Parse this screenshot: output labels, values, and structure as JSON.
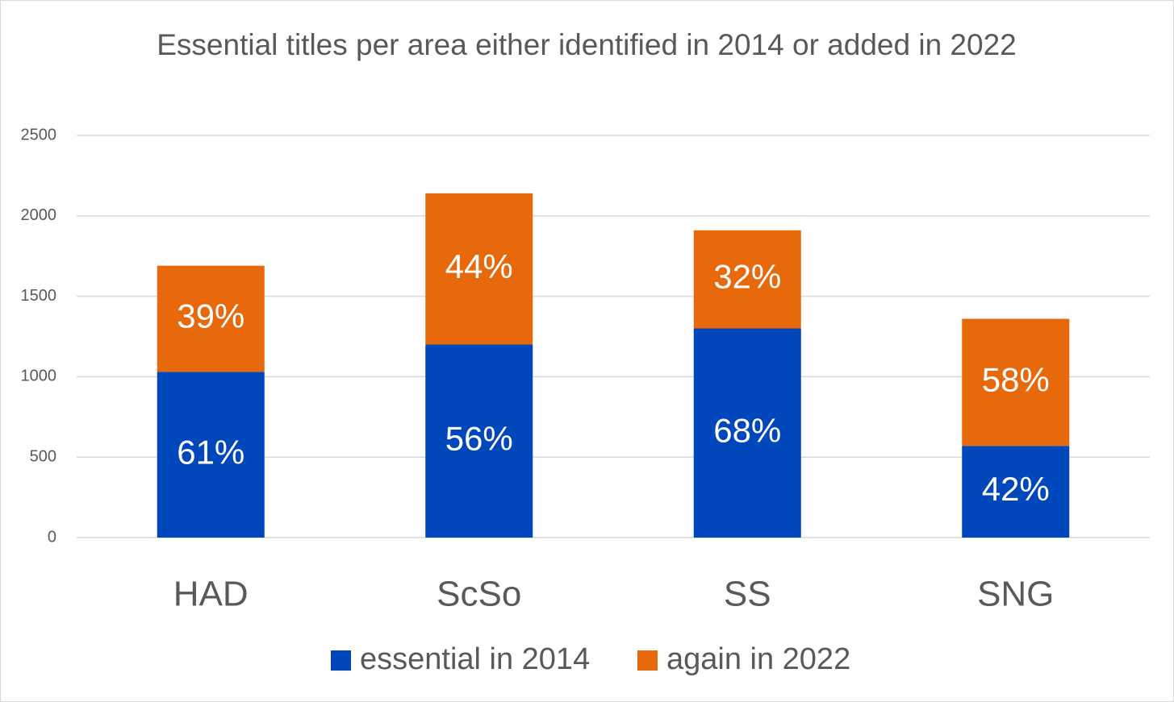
{
  "chart_data": {
    "type": "stacked_bar",
    "title": "Essential titles per area either identified in 2014 or added in 2022",
    "categories": [
      "HAD",
      "ScSo",
      "SS",
      "SNG"
    ],
    "series": [
      {
        "name": "essential in 2014",
        "color": "#0047BB",
        "values": [
          1030,
          1200,
          1300,
          570
        ],
        "value_labels": [
          "61%",
          "56%",
          "68%",
          "42%"
        ]
      },
      {
        "name": "again in 2022",
        "color": "#E8690B",
        "values": [
          660,
          940,
          610,
          790
        ],
        "value_labels": [
          "39%",
          "44%",
          "32%",
          "58%"
        ]
      }
    ],
    "ylim": [
      0,
      2500
    ],
    "yticks": [
      0,
      500,
      1000,
      1500,
      2000,
      2500
    ],
    "grid": true,
    "legend": "bottom"
  }
}
